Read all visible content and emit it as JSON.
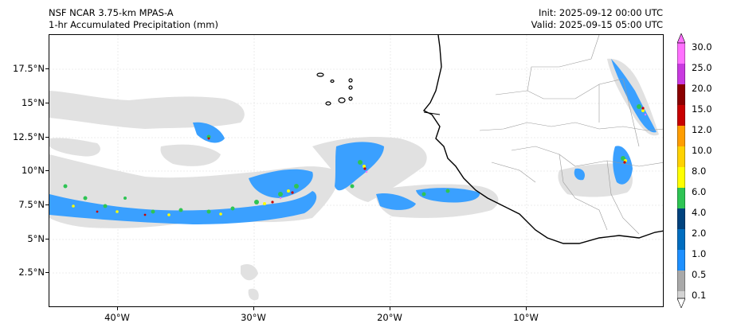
{
  "header": {
    "model": "NSF NCAR 3.75-km MPAS-A",
    "field": "1-hr Accumulated Precipitation (mm)",
    "init": "Init: 2025-09-12 00:00 UTC",
    "valid": "Valid: 2025-09-15 05:00 UTC"
  },
  "axes": {
    "lat_labels": [
      "17.5°N",
      "15°N",
      "12.5°N",
      "10°N",
      "7.5°N",
      "5°N",
      "2.5°N"
    ],
    "lon_labels": [
      "40°W",
      "30°W",
      "20°W",
      "10°W"
    ]
  },
  "colorbar": {
    "unit": "mm",
    "levels": [
      "30.0",
      "25.0",
      "20.0",
      "15.0",
      "12.0",
      "10.0",
      "8.0",
      "6.0",
      "4.0",
      "2.0",
      "1.0",
      "0.5",
      "0.1"
    ],
    "colors": [
      "#ffffff",
      "#d3d3d3",
      "#a9a9a9",
      "#1e90ff",
      "#006dc0",
      "#00437e",
      "#2ec454",
      "#ffff00",
      "#ffd200",
      "#ff9d00",
      "#c80000",
      "#8b0000",
      "#c93ae0",
      "#ff70ff"
    ]
  },
  "colors": {
    "coast": "#000000",
    "border": "#9a9a9a",
    "grid": "#e8e8e8",
    "light_precip": "#e1e1e1",
    "blue_precip": "#3aa0ff"
  }
}
